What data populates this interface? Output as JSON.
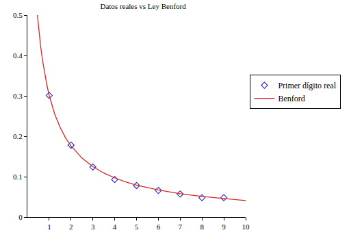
{
  "chart_data": {
    "type": "scatter",
    "title": "Datos reales vs Ley Benford",
    "series": [
      {
        "name": "Primer dígito real",
        "type": "scatter",
        "marker": "diamond-open",
        "color": "#3333cc",
        "x": [
          1,
          2,
          3,
          4,
          5,
          6,
          7,
          8,
          9
        ],
        "values": [
          0.301,
          0.178,
          0.124,
          0.093,
          0.078,
          0.066,
          0.057,
          0.048,
          0.048
        ]
      },
      {
        "name": "Benford",
        "type": "line",
        "line_style": "solid",
        "color": "#dd2222",
        "x": [
          0.46,
          0.5,
          0.6,
          0.7,
          0.8,
          0.9,
          1,
          1.25,
          1.5,
          1.75,
          2,
          2.5,
          3,
          3.5,
          4,
          4.5,
          5,
          6,
          7,
          8,
          9,
          10
        ],
        "values": [
          0.5,
          0.477,
          0.426,
          0.386,
          0.352,
          0.325,
          0.301,
          0.255,
          0.222,
          0.196,
          0.176,
          0.146,
          0.125,
          0.109,
          0.097,
          0.087,
          0.079,
          0.067,
          0.058,
          0.051,
          0.046,
          0.041
        ]
      }
    ],
    "xlim": [
      0,
      10
    ],
    "xticks": [
      1,
      2,
      3,
      4,
      5,
      6,
      7,
      8,
      9,
      10
    ],
    "ylim": [
      0,
      0.5
    ],
    "yticks": [
      0,
      0.1,
      0.2,
      0.3,
      0.4,
      0.5
    ],
    "grid": false,
    "legend": "right"
  }
}
